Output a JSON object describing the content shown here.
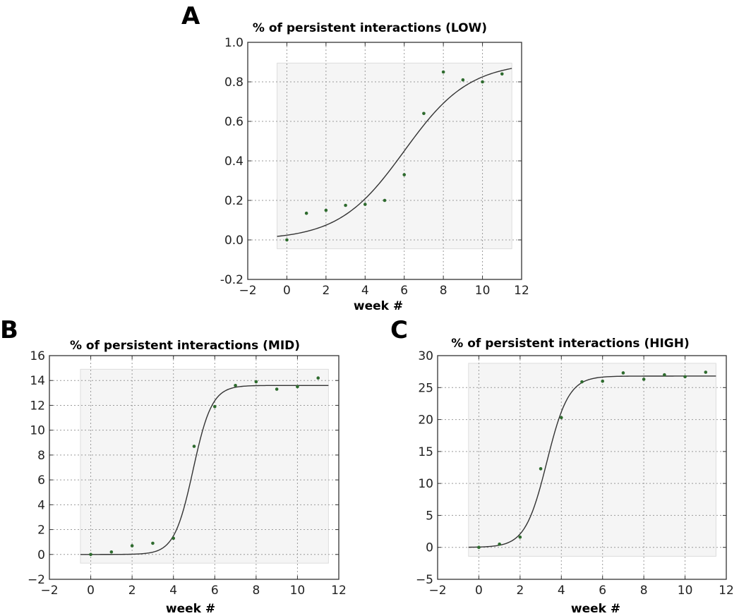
{
  "chart_data": [
    {
      "panel": "A",
      "type": "scatter",
      "title": "% of persistent interactions (LOW)",
      "xlabel": "week #",
      "ylabel": "",
      "xlim": [
        -2,
        12
      ],
      "ylim": [
        -0.2,
        1.0
      ],
      "xticks": [
        -2,
        0,
        2,
        4,
        6,
        8,
        10,
        12
      ],
      "yticks": [
        -0.2,
        0.0,
        0.2,
        0.4,
        0.6,
        0.8,
        1.0
      ],
      "xtick_labels": [
        "−2",
        "0",
        "2",
        "4",
        "6",
        "8",
        "10",
        "12"
      ],
      "ytick_labels": [
        "-0.2",
        "0.0",
        "0.2",
        "0.4",
        "0.6",
        "0.8",
        "1.0"
      ],
      "grid": true,
      "shaded_band": {
        "x": [
          -0.5,
          11.5
        ],
        "y": [
          -0.045,
          0.895
        ]
      },
      "series": [
        {
          "name": "observed",
          "x": [
            0,
            1,
            2,
            3,
            4,
            5,
            6,
            7,
            8,
            9,
            10,
            11
          ],
          "y": [
            0.0,
            0.135,
            0.15,
            0.175,
            0.18,
            0.2,
            0.33,
            0.64,
            0.85,
            0.81,
            0.8,
            0.84
          ]
        },
        {
          "name": "logistic fit",
          "fit": {
            "L": 0.9,
            "k": 0.6,
            "x0": 6.0,
            "x_start": -0.5,
            "x_end": 11.5
          }
        }
      ]
    },
    {
      "panel": "B",
      "type": "scatter",
      "title": "% of persistent interactions (MID)",
      "xlabel": "week #",
      "ylabel": "",
      "xlim": [
        -2,
        12
      ],
      "ylim": [
        -2,
        16
      ],
      "xticks": [
        -2,
        0,
        2,
        4,
        6,
        8,
        10,
        12
      ],
      "yticks": [
        -2,
        0,
        2,
        4,
        6,
        8,
        10,
        12,
        14,
        16
      ],
      "xtick_labels": [
        "−2",
        "0",
        "2",
        "4",
        "6",
        "8",
        "10",
        "12"
      ],
      "ytick_labels": [
        "−2",
        "0",
        "2",
        "4",
        "6",
        "8",
        "10",
        "12",
        "14",
        "16"
      ],
      "grid": true,
      "shaded_band": {
        "x": [
          -0.5,
          11.5
        ],
        "y": [
          -0.7,
          14.9
        ]
      },
      "series": [
        {
          "name": "observed",
          "x": [
            0,
            1,
            2,
            3,
            4,
            5,
            6,
            7,
            8,
            9,
            10,
            11
          ],
          "y": [
            0.0,
            0.2,
            0.7,
            0.9,
            1.3,
            8.7,
            11.9,
            13.6,
            13.9,
            13.3,
            13.5,
            14.2
          ]
        },
        {
          "name": "logistic fit",
          "fit": {
            "L": 13.6,
            "k": 2.2,
            "x0": 4.95,
            "x_start": -0.5,
            "x_end": 11.5
          }
        }
      ]
    },
    {
      "panel": "C",
      "type": "scatter",
      "title": "% of persistent interactions (HIGH)",
      "xlabel": "week #",
      "ylabel": "",
      "xlim": [
        -2,
        12
      ],
      "ylim": [
        -5,
        30
      ],
      "xticks": [
        -2,
        0,
        2,
        4,
        6,
        8,
        10,
        12
      ],
      "yticks": [
        -5,
        0,
        5,
        10,
        15,
        20,
        25,
        30
      ],
      "xtick_labels": [
        "−2",
        "0",
        "2",
        "4",
        "6",
        "8",
        "10",
        "12"
      ],
      "ytick_labels": [
        "−5",
        "0",
        "5",
        "10",
        "15",
        "20",
        "25",
        "30"
      ],
      "grid": true,
      "shaded_band": {
        "x": [
          -0.5,
          11.5
        ],
        "y": [
          -1.4,
          28.8
        ]
      },
      "series": [
        {
          "name": "observed",
          "x": [
            0,
            1,
            2,
            3,
            4,
            5,
            6,
            7,
            8,
            9,
            10,
            11
          ],
          "y": [
            0.0,
            0.5,
            1.6,
            12.3,
            20.3,
            25.9,
            26.0,
            27.3,
            26.3,
            27.0,
            26.7,
            27.4
          ]
        },
        {
          "name": "logistic fit",
          "fit": {
            "L": 26.8,
            "k": 1.9,
            "x0": 3.3,
            "x_start": -0.5,
            "x_end": 11.5
          }
        }
      ]
    }
  ]
}
